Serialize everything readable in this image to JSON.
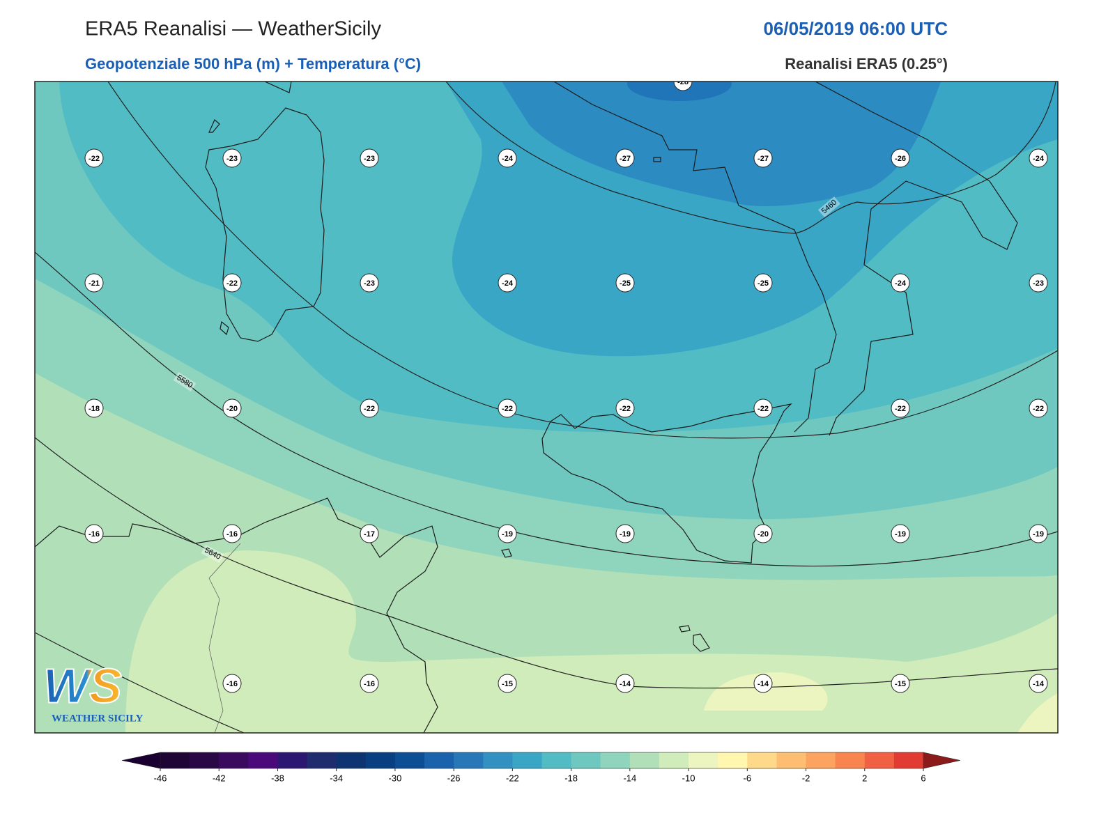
{
  "header": {
    "title": "ERA5 Reanalisi — WeatherSicily",
    "datetime": "06/05/2019 06:00 UTC",
    "subtitle": "Geopotenziale 500 hPa (m) + Temperatura (°C)",
    "source": "Reanalisi ERA5 (0.25°)"
  },
  "map": {
    "top_label": -28,
    "temperature_labels": [
      [
        -22,
        -23,
        -23,
        -24,
        -27,
        -27,
        -26,
        -24
      ],
      [
        -21,
        -22,
        -23,
        -24,
        -25,
        -25,
        -24,
        -23
      ],
      [
        -18,
        -20,
        -22,
        -22,
        -22,
        -22,
        -22,
        -22
      ],
      [
        -16,
        -16,
        -17,
        -19,
        -19,
        -20,
        -19,
        -19
      ],
      [
        null,
        -16,
        -16,
        -15,
        -14,
        -14,
        -15,
        -14
      ]
    ],
    "contour_labels": [
      5460,
      5580,
      5640
    ]
  },
  "colorbar": {
    "levels": [
      -46,
      -44,
      -42,
      -40,
      -38,
      -36,
      -34,
      -32,
      -30,
      -28,
      -26,
      -24,
      -22,
      -20,
      -18,
      -16,
      -14,
      -12,
      -10,
      -8,
      -6,
      -4,
      -2,
      0,
      2,
      4,
      6
    ],
    "colors": [
      "#1f0536",
      "#2a0845",
      "#3a0a5e",
      "#4a0a7a",
      "#2c1870",
      "#1f2c6e",
      "#0d3470",
      "#083f80",
      "#0b4e94",
      "#1a63ac",
      "#2878b8",
      "#3291c0",
      "#3aa6c6",
      "#52bcc4",
      "#6fc8bf",
      "#8fd4bc",
      "#b0dfb8",
      "#d0ecba",
      "#ecf5c0",
      "#fff7b0",
      "#fed98a",
      "#fdbe72",
      "#fca360",
      "#f8844e",
      "#f06042",
      "#e03c32"
    ],
    "under_color": "#1a0030",
    "over_color": "#8b1a1a",
    "ticks": [
      -46,
      -42,
      -38,
      -34,
      -30,
      -26,
      -22,
      -18,
      -14,
      -10,
      -6,
      -2,
      2,
      6
    ]
  },
  "logo": {
    "mark": "WS",
    "name": "WEATHER SICILY"
  }
}
